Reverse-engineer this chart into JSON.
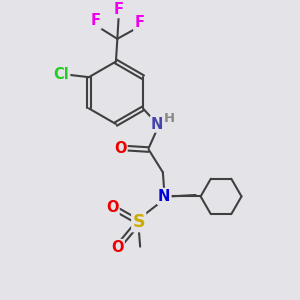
{
  "bg_color": "#e4e4e8",
  "bond_color": "#404040",
  "bond_width": 1.5,
  "atom_colors": {
    "F": "#ee00ee",
    "Cl": "#22cc22",
    "N_amide": "#4444aa",
    "H": "#888888",
    "O": "#ee0000",
    "S": "#ccaa00",
    "N_sulfonyl": "#0000dd",
    "C": "#404040"
  },
  "font_size": 10.5
}
